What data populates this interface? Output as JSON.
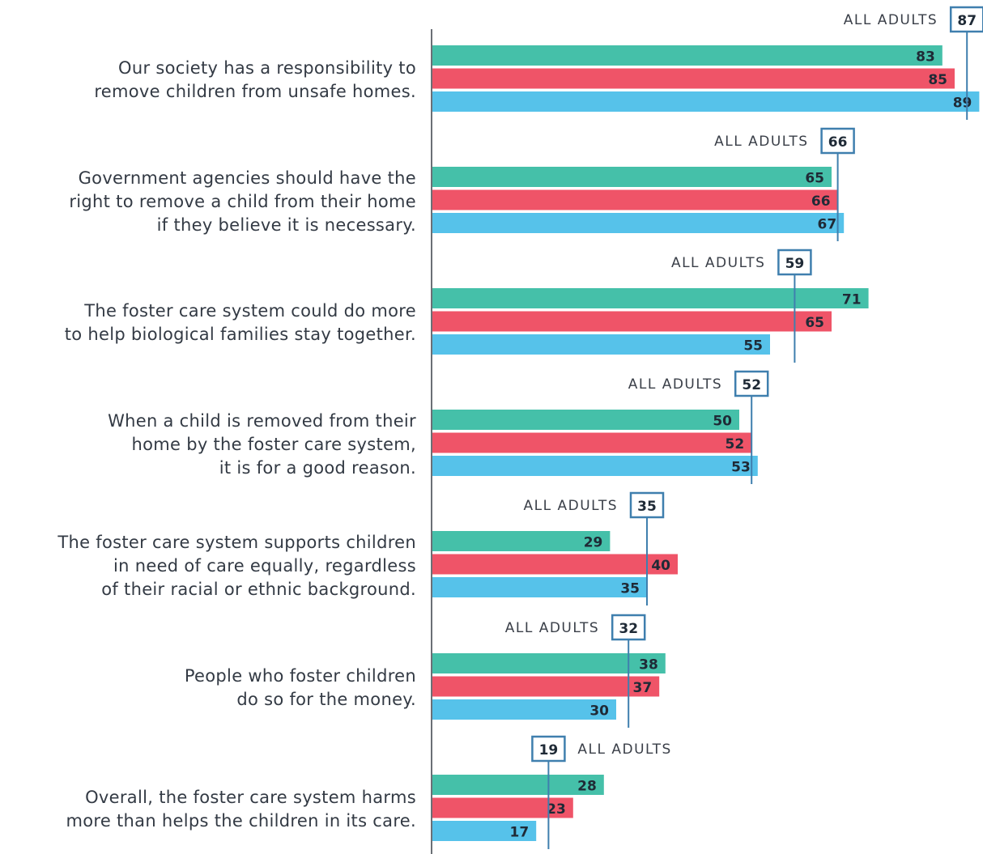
{
  "chart_data": {
    "type": "bar",
    "orientation": "horizontal",
    "xlim": [
      0,
      100
    ],
    "grid": false,
    "series": [
      {
        "color": "#45c0a9"
      },
      {
        "color": "#ef5468"
      },
      {
        "color": "#56c2ea"
      }
    ],
    "reference_label": "ALL ADULTS",
    "reference_color": "#3f7fae",
    "items": [
      {
        "lines": [
          "Our society has a responsibility to",
          "remove children from unsafe homes."
        ],
        "values": [
          83,
          85,
          89
        ],
        "all_adults": 87
      },
      {
        "lines": [
          "Government agencies should have the",
          "right to remove a child from their home",
          "if they believe it is necessary."
        ],
        "values": [
          65,
          66,
          67
        ],
        "all_adults": 66
      },
      {
        "lines": [
          "The foster care system could do more",
          "to help biological families stay together."
        ],
        "values": [
          71,
          65,
          55
        ],
        "all_adults": 59
      },
      {
        "lines": [
          "When a child is removed from their",
          "home by the foster care system,",
          "it is for a good reason."
        ],
        "values": [
          50,
          52,
          53
        ],
        "all_adults": 52
      },
      {
        "lines": [
          "The foster care system supports children",
          "in need of care equally, regardless",
          "of their racial or ethnic background."
        ],
        "values": [
          29,
          40,
          35
        ],
        "all_adults": 35
      },
      {
        "lines": [
          "People who foster children",
          "do so for the money."
        ],
        "values": [
          38,
          37,
          30
        ],
        "all_adults": 32
      },
      {
        "lines": [
          "Overall, the foster care system harms",
          "more than helps the children in its care."
        ],
        "values": [
          28,
          23,
          17
        ],
        "all_adults": 19,
        "label_side": "right"
      }
    ]
  }
}
